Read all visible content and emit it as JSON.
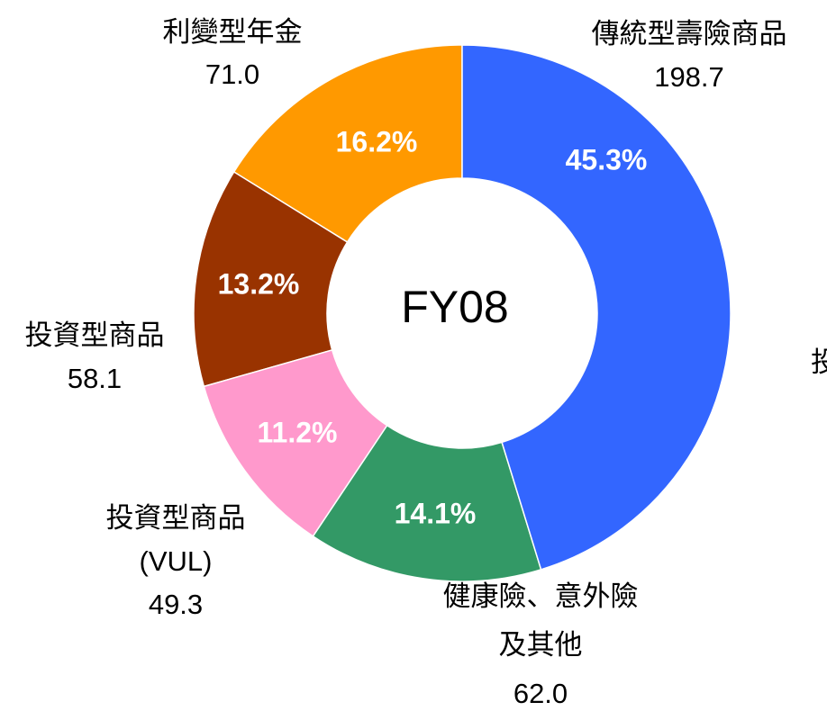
{
  "chart_data": {
    "type": "donut",
    "center_label": "FY08",
    "categories": [
      [
        "傳統型壽險商品"
      ],
      [
        "健康險、意外險",
        "及其他"
      ],
      [
        "投資型商品",
        "(VUL)"
      ],
      [
        "投資型商品"
      ],
      [
        "利變型年金"
      ]
    ],
    "values": [
      198.7,
      62.0,
      49.3,
      58.1,
      71.0
    ],
    "value_labels": [
      "198.7",
      "62.0",
      "49.3",
      "58.1",
      "71.0"
    ],
    "percentages": [
      45.3,
      14.1,
      11.2,
      13.2,
      16.2
    ],
    "percentage_labels": [
      "45.3%",
      "14.1%",
      "11.2%",
      "13.2%",
      "16.2%"
    ],
    "colors": [
      "#3366ff",
      "#339966",
      "#ff99cc",
      "#993300",
      "#ff9900"
    ],
    "clipped_label": "投"
  }
}
